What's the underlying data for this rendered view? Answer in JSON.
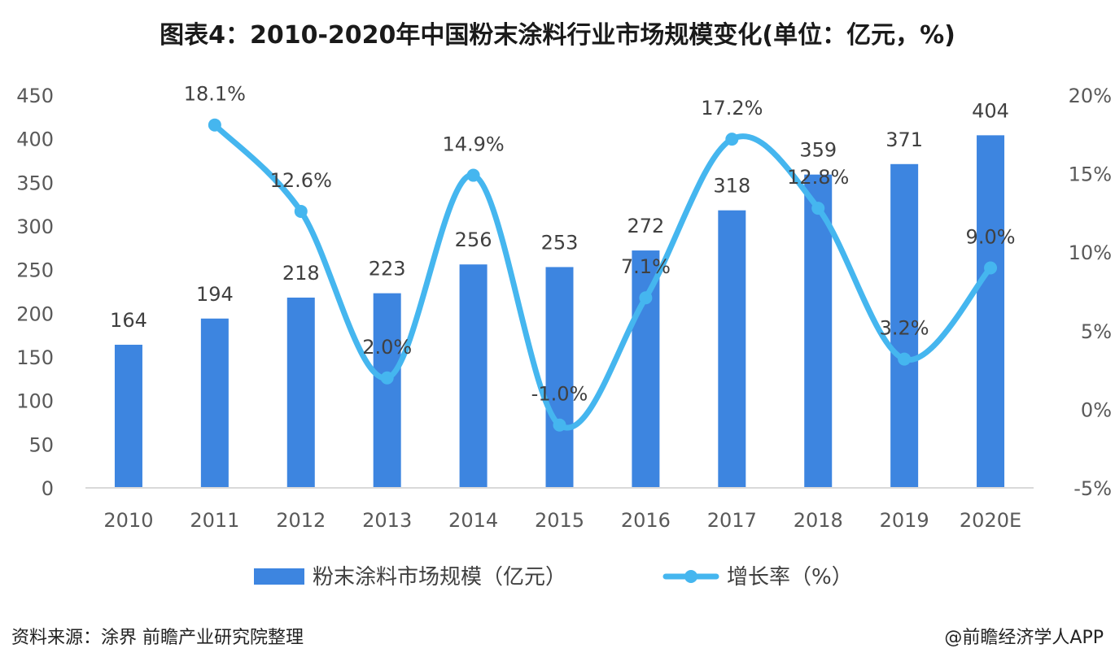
{
  "title": "图表4：2010-2020年中国粉末涂料行业市场规模变化(单位：亿元，%)",
  "footer": {
    "source": "资料来源：涂界 前瞻产业研究院整理",
    "credit": "@前瞻经济学人APP"
  },
  "colors": {
    "bar": "#3d85e0",
    "line": "#45b6ef",
    "axis": "#d9d9d9"
  },
  "chart_data": {
    "type": "bar",
    "title": "图表4：2010-2020年中国粉末涂料行业市场规模变化(单位：亿元，%)",
    "categories": [
      "2010",
      "2011",
      "2012",
      "2013",
      "2014",
      "2015",
      "2016",
      "2017",
      "2018",
      "2019",
      "2020E"
    ],
    "y_left": {
      "ylim": [
        0,
        450
      ],
      "ticks": [
        "0",
        "50",
        "100",
        "150",
        "200",
        "250",
        "300",
        "350",
        "400",
        "450"
      ]
    },
    "y_right": {
      "ylim": [
        -5,
        20
      ],
      "ticks": [
        "-5%",
        "0%",
        "5%",
        "10%",
        "15%",
        "20%"
      ]
    },
    "series": [
      {
        "name": "粉末涂料市场规模（亿元）",
        "type": "bar",
        "axis": "left",
        "values": [
          164,
          194,
          218,
          223,
          256,
          253,
          272,
          318,
          359,
          371,
          404
        ],
        "labels": [
          "164",
          "194",
          "218",
          "223",
          "256",
          "253",
          "272",
          "318",
          "359",
          "371",
          "404"
        ]
      },
      {
        "name": "增长率（%）",
        "type": "line",
        "axis": "right",
        "values": [
          null,
          18.1,
          12.6,
          2.0,
          14.9,
          -1.0,
          7.1,
          17.2,
          12.8,
          3.2,
          9.0
        ],
        "labels": [
          "",
          "18.1%",
          "12.6%",
          "2.0%",
          "14.9%",
          "-1.0%",
          "7.1%",
          "17.2%",
          "12.8%",
          "3.2%",
          "9.0%"
        ]
      }
    ],
    "legend": "bottom",
    "grid": false
  }
}
